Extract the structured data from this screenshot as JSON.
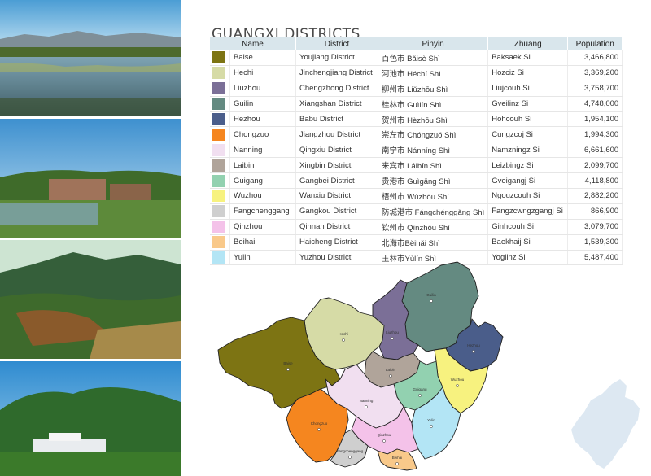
{
  "title": "GUANGXI DISTRICTS",
  "columns": [
    "Name",
    "District",
    "Pinyin",
    "Zhuang",
    "Population"
  ],
  "rows": [
    {
      "name": "Baise",
      "district": "Youjiang District",
      "pinyin": "百色市  Bǎisè Shì",
      "zhuang": "Baksaek Si",
      "population": "3,466,800",
      "color": "#7d7413"
    },
    {
      "name": "Hechi",
      "district": "Jinchengjiang District",
      "pinyin": "河池市  Héchí Shì",
      "zhuang": "Hozciz Si",
      "population": "3,369,200",
      "color": "#d6dba6"
    },
    {
      "name": "Liuzhou",
      "district": "Chengzhong District",
      "pinyin": "柳州市  Liǔzhōu Shì",
      "zhuang": "Liujcouh Si",
      "population": "3,758,700",
      "color": "#7b6f97"
    },
    {
      "name": "Guilin",
      "district": "Xiangshan District",
      "pinyin": "桂林市  Guìlín Shì",
      "zhuang": "Gveilinz Si",
      "population": "4,748,000",
      "color": "#648a81"
    },
    {
      "name": "Hezhou",
      "district": "Babu District",
      "pinyin": "贺州市  Hèzhōu Shì",
      "zhuang": "Hohcouh Si",
      "population": "1,954,100",
      "color": "#4a5d8a"
    },
    {
      "name": "Chongzuo",
      "district": "Jiangzhou District",
      "pinyin": "崇左市  Chóngzuǒ Shì",
      "zhuang": "Cungzcoj Si",
      "population": "1,994,300",
      "color": "#f5861f"
    },
    {
      "name": "Nanning",
      "district": "Qingxiu District",
      "pinyin": "南宁市  Nánníng Shì",
      "zhuang": "Namzningz Si",
      "population": "6,661,600",
      "color": "#f1dff0"
    },
    {
      "name": "Laibin",
      "district": "Xingbin District",
      "pinyin": "来宾市  Láibīn Shì",
      "zhuang": "Leizbingz Si",
      "population": "2,099,700",
      "color": "#b0a49a"
    },
    {
      "name": "Guigang",
      "district": "Gangbei District",
      "pinyin": "贵港市  Guìgǎng Shì",
      "zhuang": "Gveigangj Si",
      "population": "4,118,800",
      "color": "#92d1b0"
    },
    {
      "name": "Wuzhou",
      "district": "Wanxiu District",
      "pinyin": "梧州市  Wúzhōu Shì",
      "zhuang": "Ngouzcouh Si",
      "population": "2,882,200",
      "color": "#f7f27f"
    },
    {
      "name": "Fangchenggang",
      "district": "Gangkou District",
      "pinyin": "防城港市 Fángchénggǎng Shì",
      "zhuang": "Fangzcwngzgangj Si",
      "population": "866,900",
      "color": "#cfcfcf"
    },
    {
      "name": "Qinzhou",
      "district": "Qinnan District",
      "pinyin": "钦州市  Qīnzhōu Shì",
      "zhuang": "Ginhcouh Si",
      "population": "3,079,700",
      "color": "#f4c2e9"
    },
    {
      "name": "Beihai",
      "district": "Haicheng District",
      "pinyin": "北海市Běihǎi Shì",
      "zhuang": "Baekhaij Si",
      "population": "1,539,300",
      "color": "#f9c98a"
    },
    {
      "name": "Yulin",
      "district": "Yuzhou District",
      "pinyin": "玉林市Yùlín Shì",
      "zhuang": "Yoglinz Si",
      "population": "5,487,400",
      "color": "#b3e5f5"
    }
  ],
  "map_labels": {
    "guilin": "Guilin",
    "hechi": "Hechi",
    "liuzhou": "Liuzhou",
    "hezhou": "Hezhou",
    "baise": "Baise",
    "laibin": "Laibin",
    "wuzhou": "Wuzhou",
    "guigang": "Guigang",
    "nanning": "Nanning",
    "yulin": "Yulin",
    "chongzuo": "Chongzuo",
    "qinzhou": "Qinzhou",
    "fangchenggang": "Fangchenggang",
    "beihai": "Beihai"
  },
  "icons": {
    "photos": [
      "lake-landscape",
      "village-landscape",
      "mountain-landscape",
      "hill-village-landscape"
    ]
  }
}
